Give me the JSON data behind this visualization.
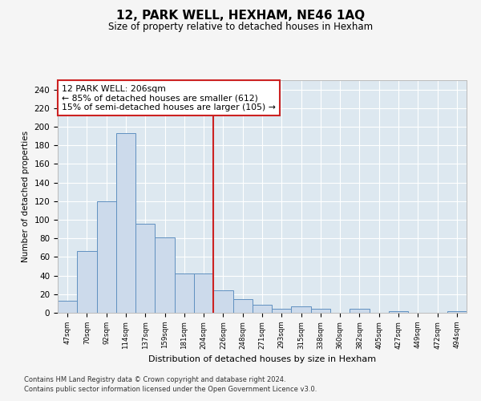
{
  "title": "12, PARK WELL, HEXHAM, NE46 1AQ",
  "subtitle": "Size of property relative to detached houses in Hexham",
  "xlabel": "Distribution of detached houses by size in Hexham",
  "ylabel": "Number of detached properties",
  "categories": [
    "47sqm",
    "70sqm",
    "92sqm",
    "114sqm",
    "137sqm",
    "159sqm",
    "181sqm",
    "204sqm",
    "226sqm",
    "248sqm",
    "271sqm",
    "293sqm",
    "315sqm",
    "338sqm",
    "360sqm",
    "382sqm",
    "405sqm",
    "427sqm",
    "449sqm",
    "472sqm",
    "494sqm"
  ],
  "values": [
    13,
    66,
    120,
    193,
    96,
    81,
    42,
    42,
    24,
    15,
    9,
    4,
    7,
    4,
    0,
    4,
    0,
    2,
    0,
    0,
    2
  ],
  "bar_color": "#ccdaeb",
  "bar_edge_color": "#6090c0",
  "background_color": "#dde8f0",
  "grid_color": "#ffffff",
  "vline_color": "#cc2222",
  "annotation_text": "12 PARK WELL: 206sqm\n← 85% of detached houses are smaller (612)\n15% of semi-detached houses are larger (105) →",
  "annotation_box_color": "#ffffff",
  "annotation_box_edge": "#cc2222",
  "fig_background": "#f5f5f5",
  "ylim": [
    0,
    250
  ],
  "yticks": [
    0,
    20,
    40,
    60,
    80,
    100,
    120,
    140,
    160,
    180,
    200,
    220,
    240
  ],
  "footnote1": "Contains HM Land Registry data © Crown copyright and database right 2024.",
  "footnote2": "Contains public sector information licensed under the Open Government Licence v3.0."
}
